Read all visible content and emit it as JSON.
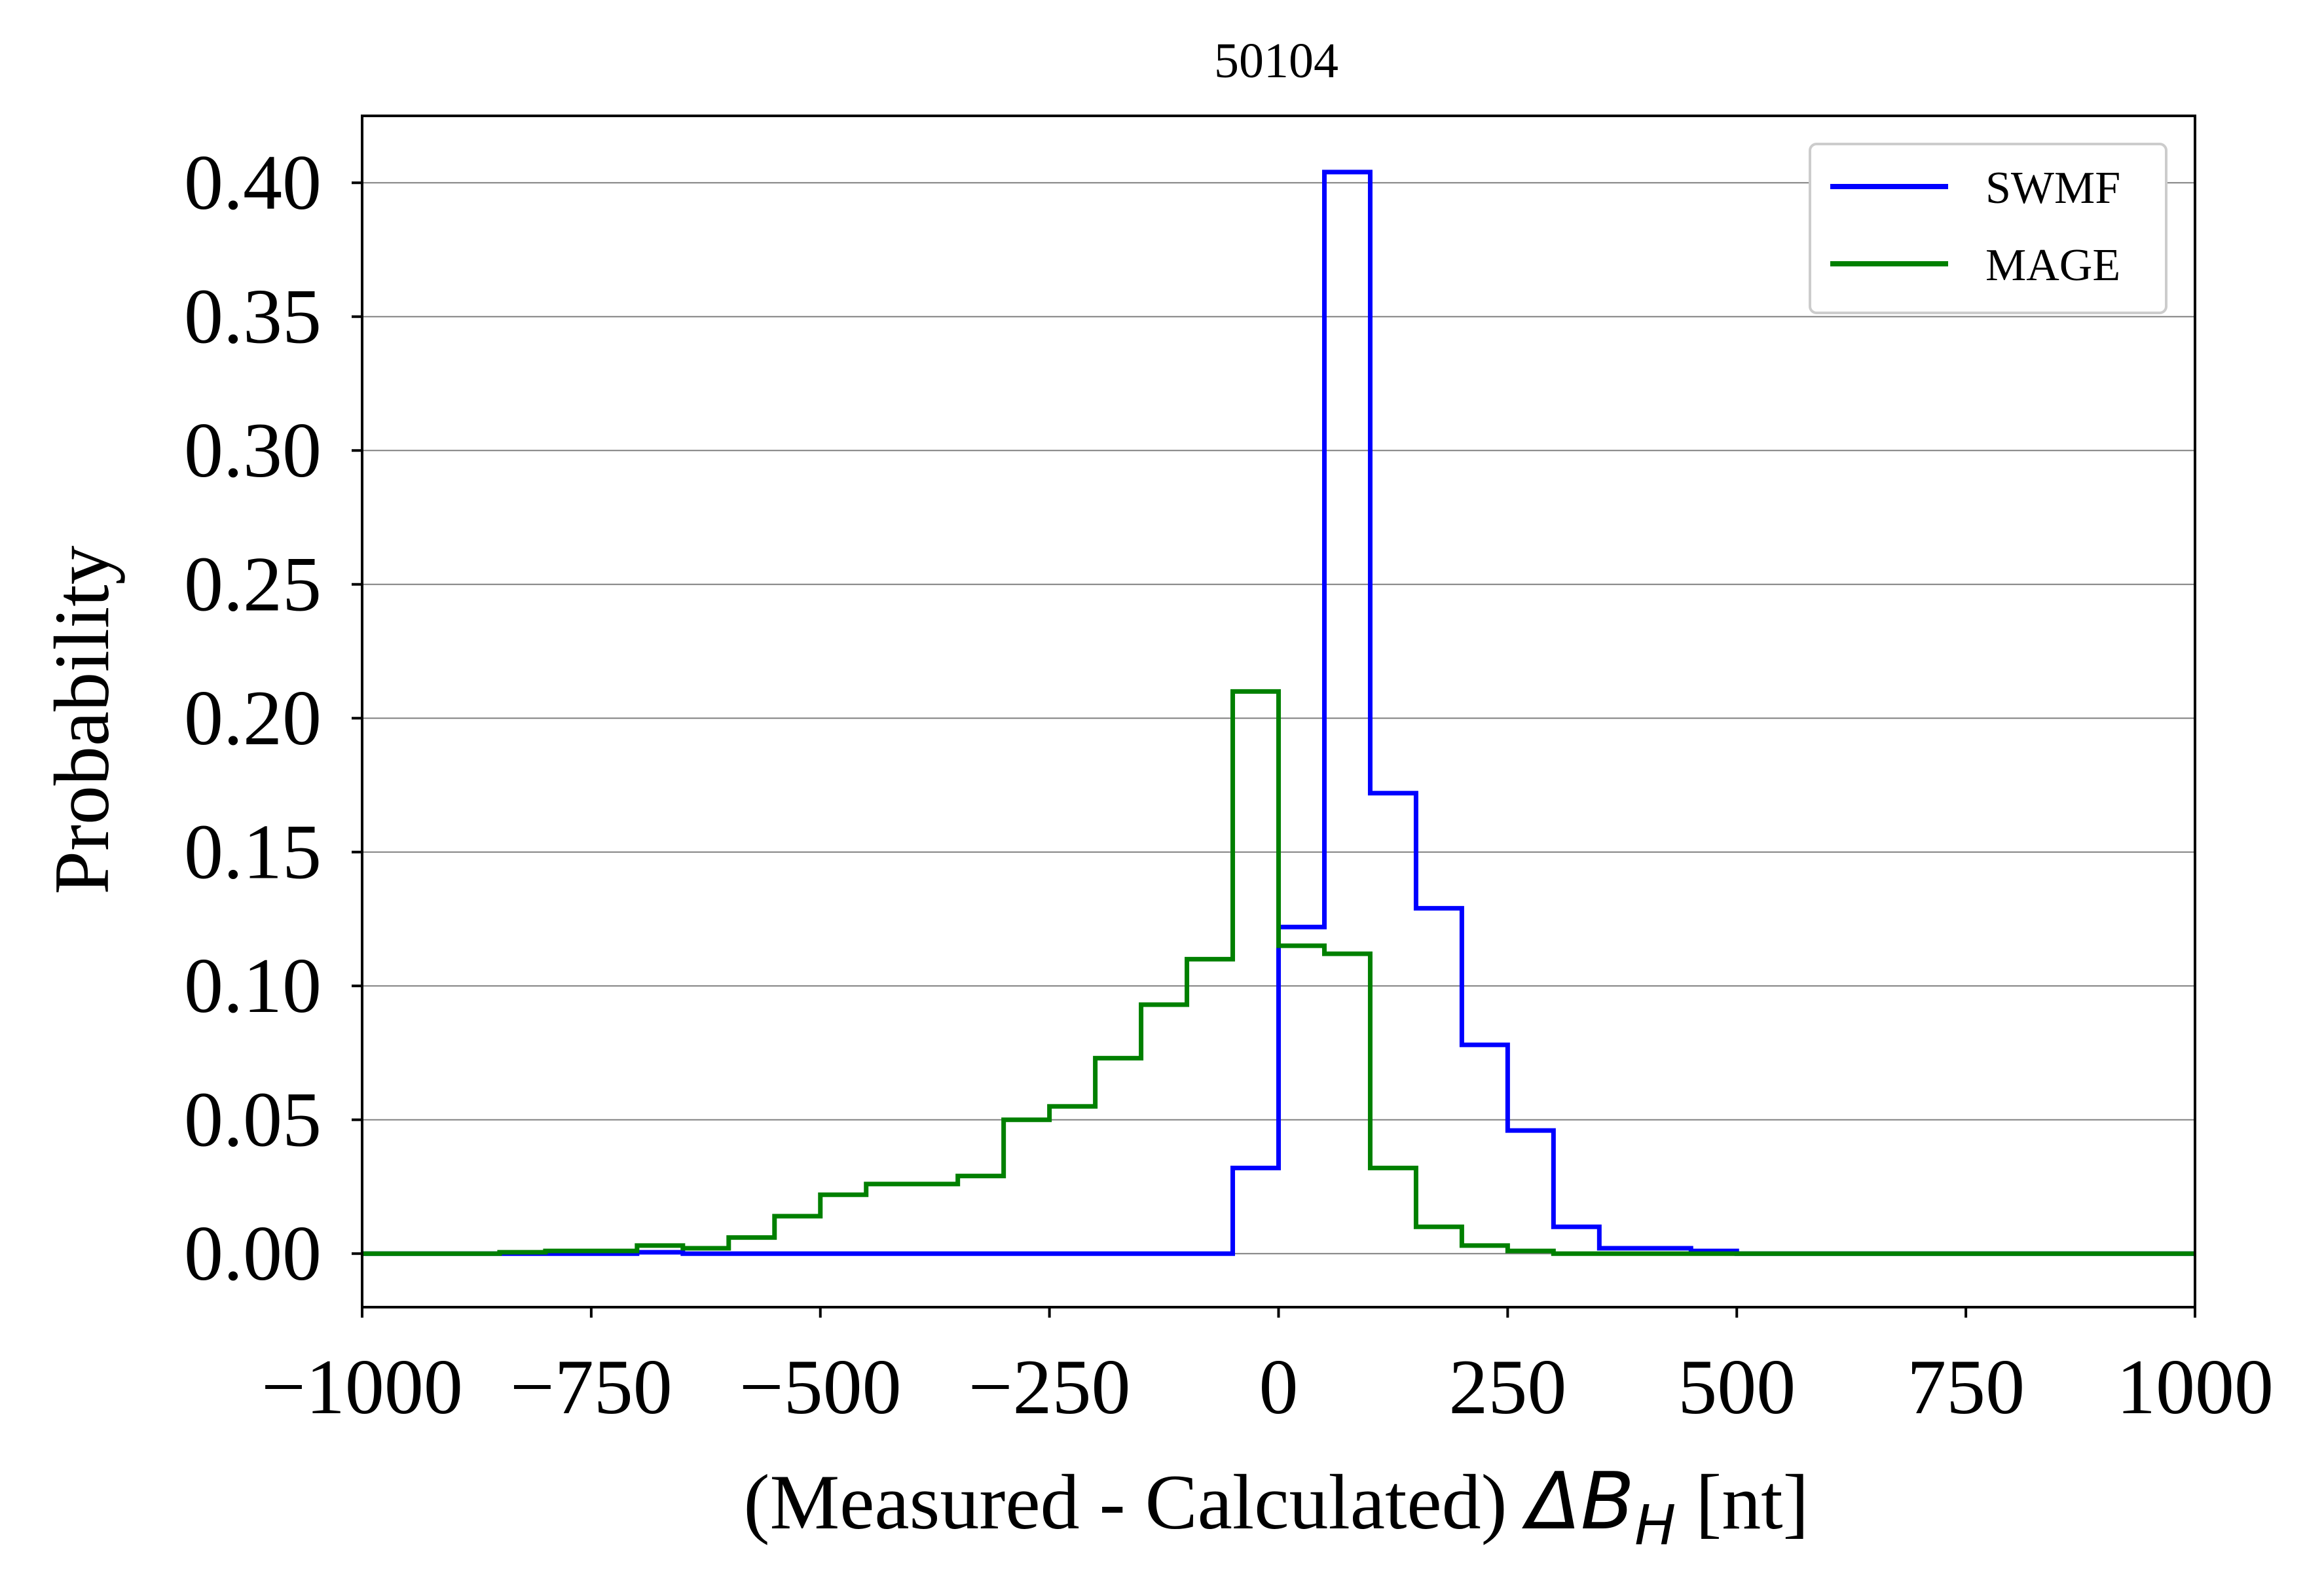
{
  "chart_data": {
    "type": "line",
    "step": true,
    "title": "50104",
    "xlabel": "(Measured - Calculated) ",
    "xlabel_math": "ΔB",
    "xlabel_sub": "H",
    "xlabel_unit": " [nt]",
    "ylabel": "Probability",
    "xlim": [
      -1000,
      1000
    ],
    "ylim": [
      -0.02,
      0.425
    ],
    "xticks": [
      -1000,
      -750,
      -500,
      -250,
      0,
      250,
      500,
      750,
      1000
    ],
    "xtick_labels": [
      "−1000",
      "−750",
      "−500",
      "−250",
      "0",
      "250",
      "500",
      "750",
      "1000"
    ],
    "yticks": [
      0.0,
      0.05,
      0.1,
      0.15,
      0.2,
      0.25,
      0.3,
      0.35,
      0.4
    ],
    "ytick_labels": [
      "0.00",
      "0.05",
      "0.10",
      "0.15",
      "0.20",
      "0.25",
      "0.30",
      "0.35",
      "0.40"
    ],
    "grid": "y",
    "legend_position": "top-right",
    "bin_edges": [
      -1000,
      -950,
      -900,
      -850,
      -800,
      -750,
      -700,
      -650,
      -600,
      -550,
      -500,
      -450,
      -400,
      -350,
      -300,
      -250,
      -200,
      -150,
      -100,
      -50,
      0,
      50,
      100,
      150,
      200,
      250,
      300,
      350,
      400,
      450,
      500,
      550,
      600,
      650,
      700,
      750,
      800,
      850,
      900,
      950,
      1000
    ],
    "series": [
      {
        "name": "SWMF",
        "color": "#0000ff",
        "values": [
          0,
          0,
          0,
          0,
          0,
          0,
          0.0005,
          0,
          0,
          0,
          0,
          0,
          0,
          0,
          0,
          0,
          0,
          0,
          0,
          0.032,
          0.122,
          0.404,
          0.172,
          0.129,
          0.078,
          0.046,
          0.01,
          0.002,
          0.002,
          0.001,
          0,
          0,
          0,
          0,
          0,
          0,
          0,
          0,
          0,
          0
        ]
      },
      {
        "name": "MAGE",
        "color": "#008000",
        "values": [
          0,
          0,
          0,
          0.0005,
          0.001,
          0.001,
          0.003,
          0.002,
          0.006,
          0.014,
          0.022,
          0.026,
          0.026,
          0.029,
          0.05,
          0.055,
          0.073,
          0.093,
          0.11,
          0.21,
          0.115,
          0.112,
          0.032,
          0.01,
          0.003,
          0.001,
          0,
          0,
          0,
          0,
          0,
          0,
          0,
          0,
          0,
          0,
          0,
          0,
          0,
          0
        ]
      }
    ]
  }
}
